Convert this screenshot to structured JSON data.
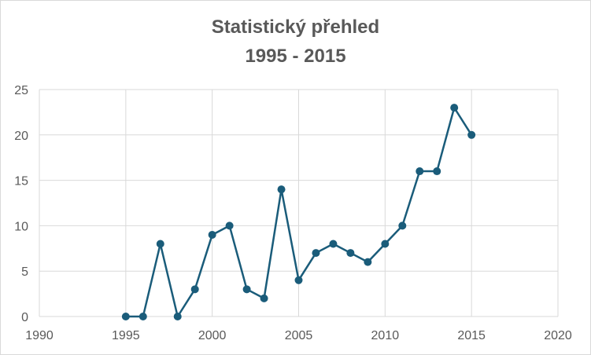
{
  "chart_data": {
    "type": "scatter",
    "title": "Statistický přehled",
    "subtitle": "1995 - 2015",
    "xlabel": "",
    "ylabel": "",
    "xlim": [
      1990,
      2020
    ],
    "ylim": [
      0,
      25
    ],
    "x_ticks": [
      1990,
      1995,
      2000,
      2005,
      2010,
      2015,
      2020
    ],
    "y_ticks": [
      0,
      5,
      10,
      15,
      20,
      25
    ],
    "grid": true,
    "legend": "none",
    "lines": "straight with markers",
    "color": "#1a5c7a",
    "series": [
      {
        "x": [
          1995,
          1996,
          1997,
          1998,
          1999,
          2000,
          2001,
          2002,
          2003,
          2004,
          2005,
          2006,
          2007,
          2008,
          2009,
          2010,
          2011,
          2012,
          2013,
          2014,
          2015
        ],
        "y": [
          0,
          0,
          8,
          0,
          3,
          9,
          10,
          3,
          2,
          14,
          4,
          7,
          8,
          7,
          6,
          8,
          10,
          16,
          16,
          23,
          20
        ]
      }
    ]
  }
}
